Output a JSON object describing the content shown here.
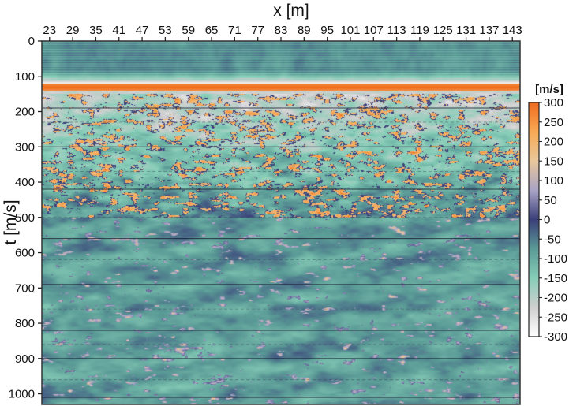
{
  "chart_data": {
    "type": "heatmap",
    "title": "",
    "xlabel": "x [m]",
    "ylabel": "t [m/s]",
    "x_axis_position": "top",
    "x_ticks": [
      23,
      29,
      35,
      41,
      47,
      53,
      59,
      65,
      71,
      77,
      83,
      89,
      95,
      101,
      107,
      113,
      119,
      125,
      131,
      137,
      143
    ],
    "y_ticks": [
      0,
      100,
      200,
      300,
      400,
      500,
      600,
      700,
      800,
      900,
      1000
    ],
    "xlim": [
      21,
      145
    ],
    "ylim": [
      1030,
      0
    ],
    "colorbar": {
      "label": "[m/s]",
      "range": [
        -300,
        300
      ],
      "ticks": [
        300,
        250,
        200,
        150,
        100,
        50,
        0,
        -50,
        -100,
        -150,
        -200,
        -250,
        -300
      ],
      "colors": [
        "#ffffff",
        "#cfcfcf",
        "#86cdb7",
        "#5a9a96",
        "#3a3f7a",
        "#a9a3c6",
        "#e9c79a",
        "#f7a955",
        "#f06b1e"
      ]
    },
    "colors": {
      "strong_positive": "#f06b1e",
      "mild_positive": "#e9c79a",
      "zero": "#3a3f7a",
      "negative": "#5a9a96",
      "strong_negative": "#ffffff"
    },
    "features": {
      "top_band_t": [
        0,
        110
      ],
      "strong_reflector_t": 130,
      "bright_zone_t": [
        150,
        500
      ],
      "deep_zone_t": [
        500,
        1030
      ]
    },
    "annotation_lines_t": [
      190,
      230,
      300,
      370,
      420,
      500,
      560,
      620,
      690,
      760,
      820,
      860,
      900,
      960,
      1010
    ]
  }
}
